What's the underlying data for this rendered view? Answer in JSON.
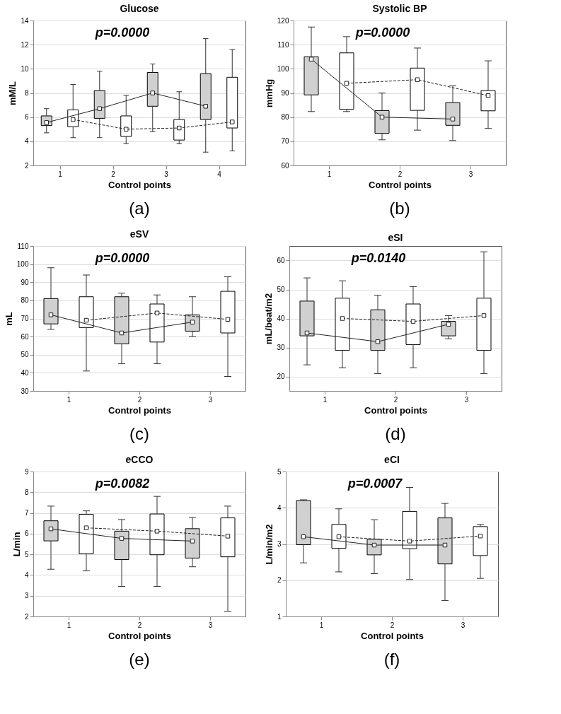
{
  "chart_data": [
    {
      "type": "box",
      "title": "Glucose",
      "xlabel": "Control points",
      "ylabel": "mM/L",
      "marker": "square",
      "xlim": [
        0.5,
        4.5
      ],
      "xticks": [
        1,
        2,
        3,
        4
      ],
      "ylim": [
        2,
        14
      ],
      "yticks": [
        2,
        4,
        6,
        8,
        10,
        12,
        14
      ],
      "grid": "y",
      "annotations": [
        "p=0.0000",
        "(a)"
      ],
      "series": [
        {
          "color": "#d0d0d0",
          "x": [
            0.75,
            1.75,
            2.75,
            3.75
          ],
          "boxes": [
            {
              "low": 4.7,
              "q1": 5.3,
              "median": 5.55,
              "q3": 6.1,
              "high": 6.7
            },
            {
              "low": 4.3,
              "q1": 5.9,
              "median": 6.7,
              "q3": 8.2,
              "high": 9.8
            },
            {
              "low": 4.8,
              "q1": 6.9,
              "median": 8.0,
              "q3": 9.7,
              "high": 10.4
            },
            {
              "low": 3.1,
              "q1": 5.8,
              "median": 6.9,
              "q3": 9.6,
              "high": 12.5
            }
          ]
        },
        {
          "color": "#ffffff",
          "x": [
            1.25,
            2.25,
            3.25,
            4.25
          ],
          "boxes": [
            {
              "low": 4.3,
              "q1": 5.2,
              "median": 5.8,
              "q3": 6.6,
              "high": 8.7
            },
            {
              "low": 3.8,
              "q1": 4.4,
              "median": 5.0,
              "q3": 6.1,
              "high": 7.8
            },
            {
              "low": 3.8,
              "q1": 4.1,
              "median": 5.1,
              "q3": 5.8,
              "high": 8.1
            },
            {
              "low": 3.2,
              "q1": 5.1,
              "median": 5.6,
              "q3": 9.3,
              "high": 11.6
            }
          ]
        },
        {
          "type": "line",
          "color": "#222222",
          "line_style": "solid",
          "marker": "none",
          "x": [
            0.75,
            1.75,
            2.75,
            3.75
          ],
          "values": [
            5.55,
            6.7,
            8.0,
            6.9
          ]
        },
        {
          "type": "line",
          "color": "#222222",
          "line_style": "dashed",
          "marker": "none",
          "x": [
            1.25,
            2.25,
            3.25,
            4.25
          ],
          "values": [
            5.8,
            5.0,
            5.1,
            5.6
          ]
        }
      ]
    },
    {
      "type": "box",
      "title": "Systolic BP",
      "xlabel": "Control points",
      "ylabel": "mmHg",
      "marker": "square",
      "xlim": [
        0.5,
        3.5
      ],
      "xticks": [
        1,
        2,
        3
      ],
      "ylim": [
        60,
        120
      ],
      "yticks": [
        60,
        70,
        80,
        90,
        100,
        110,
        120
      ],
      "grid": "y",
      "annotations": [
        "p=0.0000",
        "(b)"
      ],
      "series": [
        {
          "color": "#d0d0d0",
          "x": [
            0.75,
            1.75,
            2.75
          ],
          "boxes": [
            {
              "low": 82.3,
              "q1": 89.2,
              "median": 104,
              "q3": 105,
              "high": 117.3
            },
            {
              "low": 70.6,
              "q1": 73.3,
              "median": 80,
              "q3": 82.7,
              "high": 90
            },
            {
              "low": 70.3,
              "q1": 76.6,
              "median": 79.2,
              "q3": 86,
              "high": 93
            }
          ]
        },
        {
          "color": "#ffffff",
          "x": [
            1.25,
            2.25,
            3.25
          ],
          "boxes": [
            {
              "low": 82.3,
              "q1": 83.2,
              "median": 94,
              "q3": 106.6,
              "high": 113.3
            },
            {
              "low": 74.6,
              "q1": 82.8,
              "median": 95.5,
              "q3": 100.3,
              "high": 108.6
            },
            {
              "low": 75.3,
              "q1": 82.6,
              "median": 88.9,
              "q3": 91,
              "high": 103.3
            }
          ]
        },
        {
          "type": "line",
          "color": "#222222",
          "line_style": "solid",
          "marker": "none",
          "x": [
            0.75,
            1.75,
            2.75
          ],
          "values": [
            104,
            80,
            79.2
          ]
        },
        {
          "type": "line",
          "color": "#222222",
          "line_style": "dashed",
          "marker": "none",
          "x": [
            1.25,
            2.25,
            3.25
          ],
          "values": [
            94,
            95.5,
            88.9
          ]
        }
      ]
    },
    {
      "type": "box",
      "title": "eSV",
      "xlabel": "Control points",
      "ylabel": "mL",
      "marker": "square",
      "xlim": [
        0.5,
        3.5
      ],
      "xticks": [
        1,
        2,
        3
      ],
      "ylim": [
        30,
        110
      ],
      "yticks": [
        30,
        40,
        50,
        60,
        70,
        80,
        90,
        100,
        110
      ],
      "grid": "y",
      "annotations": [
        "p=0.0000",
        "(c)"
      ],
      "series": [
        {
          "color": "#d0d0d0",
          "x": [
            0.75,
            1.75,
            2.75
          ],
          "boxes": [
            {
              "low": 64,
              "q1": 67,
              "median": 72,
              "q3": 81,
              "high": 98
            },
            {
              "low": 45,
              "q1": 56,
              "median": 62,
              "q3": 82,
              "high": 84
            },
            {
              "low": 60,
              "q1": 63,
              "median": 68,
              "q3": 72,
              "high": 82
            }
          ]
        },
        {
          "color": "#ffffff",
          "x": [
            1.25,
            2.25,
            3.25
          ],
          "boxes": [
            {
              "low": 41,
              "q1": 65,
              "median": 69,
              "q3": 82,
              "high": 94
            },
            {
              "low": 45,
              "q1": 57,
              "median": 73,
              "q3": 78,
              "high": 83
            },
            {
              "low": 38,
              "q1": 62,
              "median": 69.5,
              "q3": 85,
              "high": 93
            }
          ]
        },
        {
          "type": "line",
          "color": "#222222",
          "line_style": "solid",
          "marker": "none",
          "x": [
            0.75,
            1.75,
            2.75
          ],
          "values": [
            72,
            62,
            68
          ]
        },
        {
          "type": "line",
          "color": "#222222",
          "line_style": "dashed",
          "marker": "none",
          "x": [
            1.25,
            2.25,
            3.25
          ],
          "values": [
            69,
            73,
            69.5
          ]
        }
      ]
    },
    {
      "type": "box",
      "title": "eSI",
      "xlabel": "Control points",
      "ylabel": "mL/beat/m2",
      "marker": "square",
      "xlim": [
        0.5,
        3.5
      ],
      "xticks": [
        1,
        2,
        3
      ],
      "ylim": [
        15,
        65
      ],
      "yticks": [
        20,
        30,
        40,
        50,
        60
      ],
      "grid": "y",
      "annotations": [
        "p=0.0140",
        "(d)"
      ],
      "series": [
        {
          "color": "#d0d0d0",
          "x": [
            0.75,
            1.75,
            2.75
          ],
          "boxes": [
            {
              "low": 24,
              "q1": 34,
              "median": 35,
              "q3": 46,
              "high": 54
            },
            {
              "low": 21,
              "q1": 29,
              "median": 32,
              "q3": 43,
              "high": 48
            },
            {
              "low": 33,
              "q1": 34,
              "median": 38,
              "q3": 39,
              "high": 41
            }
          ]
        },
        {
          "color": "#ffffff",
          "x": [
            1.25,
            2.25,
            3.25
          ],
          "boxes": [
            {
              "low": 23,
              "q1": 29,
              "median": 40,
              "q3": 47,
              "high": 53
            },
            {
              "low": 23,
              "q1": 31,
              "median": 39,
              "q3": 45,
              "high": 51
            },
            {
              "low": 21,
              "q1": 29,
              "median": 41,
              "q3": 47,
              "high": 63
            }
          ]
        },
        {
          "type": "line",
          "color": "#222222",
          "line_style": "solid",
          "marker": "none",
          "x": [
            0.75,
            1.75,
            2.75
          ],
          "values": [
            35,
            32,
            38
          ]
        },
        {
          "type": "line",
          "color": "#222222",
          "line_style": "dashed",
          "marker": "none",
          "x": [
            1.25,
            2.25,
            3.25
          ],
          "values": [
            40,
            39,
            41
          ]
        }
      ]
    },
    {
      "type": "box",
      "title": "eCCO",
      "xlabel": "Control points",
      "ylabel": "L/min",
      "marker": "square",
      "xlim": [
        0.5,
        3.5
      ],
      "xticks": [
        1,
        2,
        3
      ],
      "ylim": [
        2,
        9
      ],
      "yticks": [
        2,
        3,
        4,
        5,
        6,
        7,
        8,
        9
      ],
      "grid": "y",
      "annotations": [
        "p=0.0082",
        "(e)"
      ],
      "series": [
        {
          "color": "#d0d0d0",
          "x": [
            0.75,
            1.75,
            2.75
          ],
          "boxes": [
            {
              "low": 4.28,
              "q1": 5.65,
              "median": 6.23,
              "q3": 6.62,
              "high": 7.33
            },
            {
              "low": 3.45,
              "q1": 4.75,
              "median": 5.77,
              "q3": 6.12,
              "high": 6.68
            },
            {
              "low": 4.4,
              "q1": 4.82,
              "median": 5.64,
              "q3": 6.24,
              "high": 6.78
            }
          ]
        },
        {
          "color": "#ffffff",
          "x": [
            1.25,
            2.25,
            3.25
          ],
          "boxes": [
            {
              "low": 4.2,
              "q1": 5.03,
              "median": 6.28,
              "q3": 6.93,
              "high": 7.1
            },
            {
              "low": 3.45,
              "q1": 4.98,
              "median": 6.12,
              "q3": 6.95,
              "high": 7.8
            },
            {
              "low": 2.25,
              "q1": 4.88,
              "median": 5.88,
              "q3": 6.76,
              "high": 7.33
            }
          ]
        },
        {
          "type": "line",
          "color": "#222222",
          "line_style": "solid",
          "marker": "none",
          "x": [
            0.75,
            1.75,
            2.75
          ],
          "values": [
            6.23,
            5.77,
            5.64
          ]
        },
        {
          "type": "line",
          "color": "#222222",
          "line_style": "dashed",
          "marker": "none",
          "x": [
            1.25,
            2.25,
            3.25
          ],
          "values": [
            6.28,
            6.12,
            5.88
          ]
        }
      ]
    },
    {
      "type": "box",
      "title": "eCI",
      "xlabel": "Control points",
      "ylabel": "L/min/m2",
      "marker": "square",
      "xlim": [
        0.5,
        3.5
      ],
      "xticks": [
        1,
        2,
        3
      ],
      "ylim": [
        1,
        5
      ],
      "yticks": [
        1,
        2,
        3,
        4,
        5
      ],
      "grid": "y",
      "annotations": [
        "p=0.0007",
        "(f)"
      ],
      "series": [
        {
          "color": "#d0d0d0",
          "x": [
            0.75,
            1.75,
            2.75
          ],
          "boxes": [
            {
              "low": 2.48,
              "q1": 2.98,
              "median": 3.2,
              "q3": 4.2,
              "high": 4.22
            },
            {
              "low": 2.18,
              "q1": 2.7,
              "median": 2.97,
              "q3": 3.13,
              "high": 3.67
            },
            {
              "low": 1.44,
              "q1": 2.45,
              "median": 2.97,
              "q3": 3.72,
              "high": 4.12
            }
          ]
        },
        {
          "color": "#ffffff",
          "x": [
            1.25,
            2.25,
            3.25
          ],
          "boxes": [
            {
              "low": 2.23,
              "q1": 2.88,
              "median": 3.2,
              "q3": 3.54,
              "high": 3.97
            },
            {
              "low": 2.02,
              "q1": 2.87,
              "median": 3.08,
              "q3": 3.9,
              "high": 4.56
            },
            {
              "low": 2.05,
              "q1": 2.68,
              "median": 3.22,
              "q3": 3.48,
              "high": 3.54
            }
          ]
        },
        {
          "type": "line",
          "color": "#222222",
          "line_style": "solid",
          "marker": "none",
          "x": [
            0.75,
            1.75,
            2.75
          ],
          "values": [
            3.2,
            2.97,
            2.97
          ]
        },
        {
          "type": "line",
          "color": "#222222",
          "line_style": "dashed",
          "marker": "none",
          "x": [
            1.25,
            2.25,
            3.25
          ],
          "values": [
            3.2,
            3.08,
            3.22
          ]
        }
      ]
    }
  ]
}
